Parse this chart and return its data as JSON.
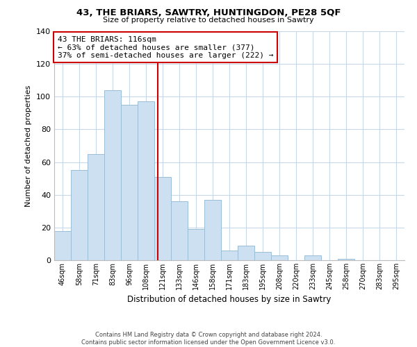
{
  "title": "43, THE BRIARS, SAWTRY, HUNTINGDON, PE28 5QF",
  "subtitle": "Size of property relative to detached houses in Sawtry",
  "xlabel": "Distribution of detached houses by size in Sawtry",
  "ylabel": "Number of detached properties",
  "bar_labels": [
    "46sqm",
    "58sqm",
    "71sqm",
    "83sqm",
    "96sqm",
    "108sqm",
    "121sqm",
    "133sqm",
    "146sqm",
    "158sqm",
    "171sqm",
    "183sqm",
    "195sqm",
    "208sqm",
    "220sqm",
    "233sqm",
    "245sqm",
    "258sqm",
    "270sqm",
    "283sqm",
    "295sqm"
  ],
  "bar_values": [
    18,
    55,
    65,
    104,
    95,
    97,
    51,
    36,
    19,
    37,
    6,
    9,
    5,
    3,
    0,
    3,
    0,
    1,
    0,
    0,
    0
  ],
  "bar_color": "#cde0f2",
  "bar_edge_color": "#9bbdd6",
  "vline_index": 5.72,
  "vline_color": "#cc0000",
  "ylim": [
    0,
    140
  ],
  "yticks": [
    0,
    20,
    40,
    60,
    80,
    100,
    120,
    140
  ],
  "annotation_text": "43 THE BRIARS: 116sqm\n← 63% of detached houses are smaller (377)\n37% of semi-detached houses are larger (222) →",
  "annotation_box_color": "#ffffff",
  "annotation_box_edge": "#cc0000",
  "footer_line1": "Contains HM Land Registry data © Crown copyright and database right 2024.",
  "footer_line2": "Contains public sector information licensed under the Open Government Licence v3.0.",
  "background_color": "#ffffff",
  "grid_color": "#c8d8eb"
}
